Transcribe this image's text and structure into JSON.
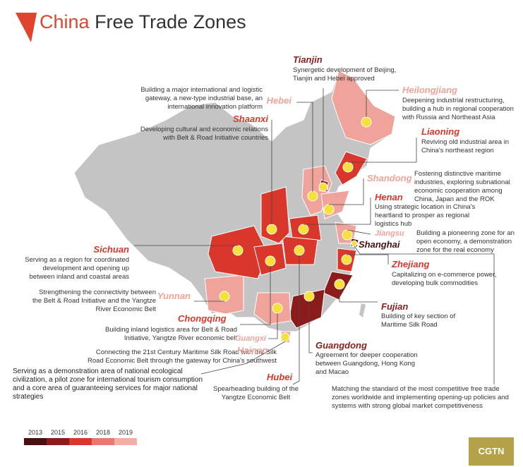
{
  "header": {
    "title_highlight": "China",
    "title_rest": "Free Trade Zones"
  },
  "zones": [
    {
      "name": "Tianjin",
      "description": "Synergetic development of Beijing, Tianjin and Hebei approved"
    },
    {
      "name": "Hebei",
      "description": "Building a major international and logistic gateway, a new-type industrial base, an international innovation platform"
    },
    {
      "name": "Heilongjiang",
      "description": "Deepening industrial restructuring, building a hub in regional cooperation with Russia and Northeast Asia"
    },
    {
      "name": "Shaanxi",
      "description": "Developing cultural and economic relations with Belt & Road Initiative countries"
    },
    {
      "name": "Liaoning",
      "description": "Reviving old industrial area in China's northeast region"
    },
    {
      "name": "Shandong",
      "description": "Fostering distinctive maritime industries, exploring subnational economic cooperation among China, Japan and the ROK"
    },
    {
      "name": "Henan",
      "description": "Using strategic location in China's heartland to prosper as regional logistics hub"
    },
    {
      "name": "Jiangsu",
      "description": "Building a pioneering zone for an open economy, a demonstration zone for the real economy"
    },
    {
      "name": "Shanghai",
      "description": "Matching the standard of the most competitive free trade zones worldwide and implementing opening-up policies and systems with strong global market competitiveness"
    },
    {
      "name": "Zhejiang",
      "description": "Capitalizing on e-commerce power, developing bulk commodities"
    },
    {
      "name": "Sichuan",
      "description": "Serving as a region for coordinated development and opening up between inland and coastal areas"
    },
    {
      "name": "Yunnan",
      "description": "Strengthening the connectivity between the Belt & Road Initiative and the Yangtze River Economic Belt"
    },
    {
      "name": "Fujian",
      "description": "Building of key section of Maritime Silk Road"
    },
    {
      "name": "Chongqing",
      "description": "Building inland logistics area for Belt & Road Initiative, Yangtze River economic belt"
    },
    {
      "name": "Guangxi",
      "description": "Connecting the 21st Century Maritime Silk Road with the Silk Road Economic Belt through the gateway for China's southwest"
    },
    {
      "name": "Hainan",
      "description": "Serving as a demonstration area of national ecological civilization, a pilot zone for international tourism consumption and a core area of guaranteeing services for major national strategies"
    },
    {
      "name": "Guangdong",
      "description": "Agreement for deeper cooperation between Guangdong, Hong Kong and Macao"
    },
    {
      "name": "Hubei",
      "description": "Spearheading building of the Yangtze Economic Belt"
    }
  ],
  "legend": [
    "2013",
    "2015",
    "2016",
    "2018",
    "2019"
  ],
  "brand": "CGTN"
}
